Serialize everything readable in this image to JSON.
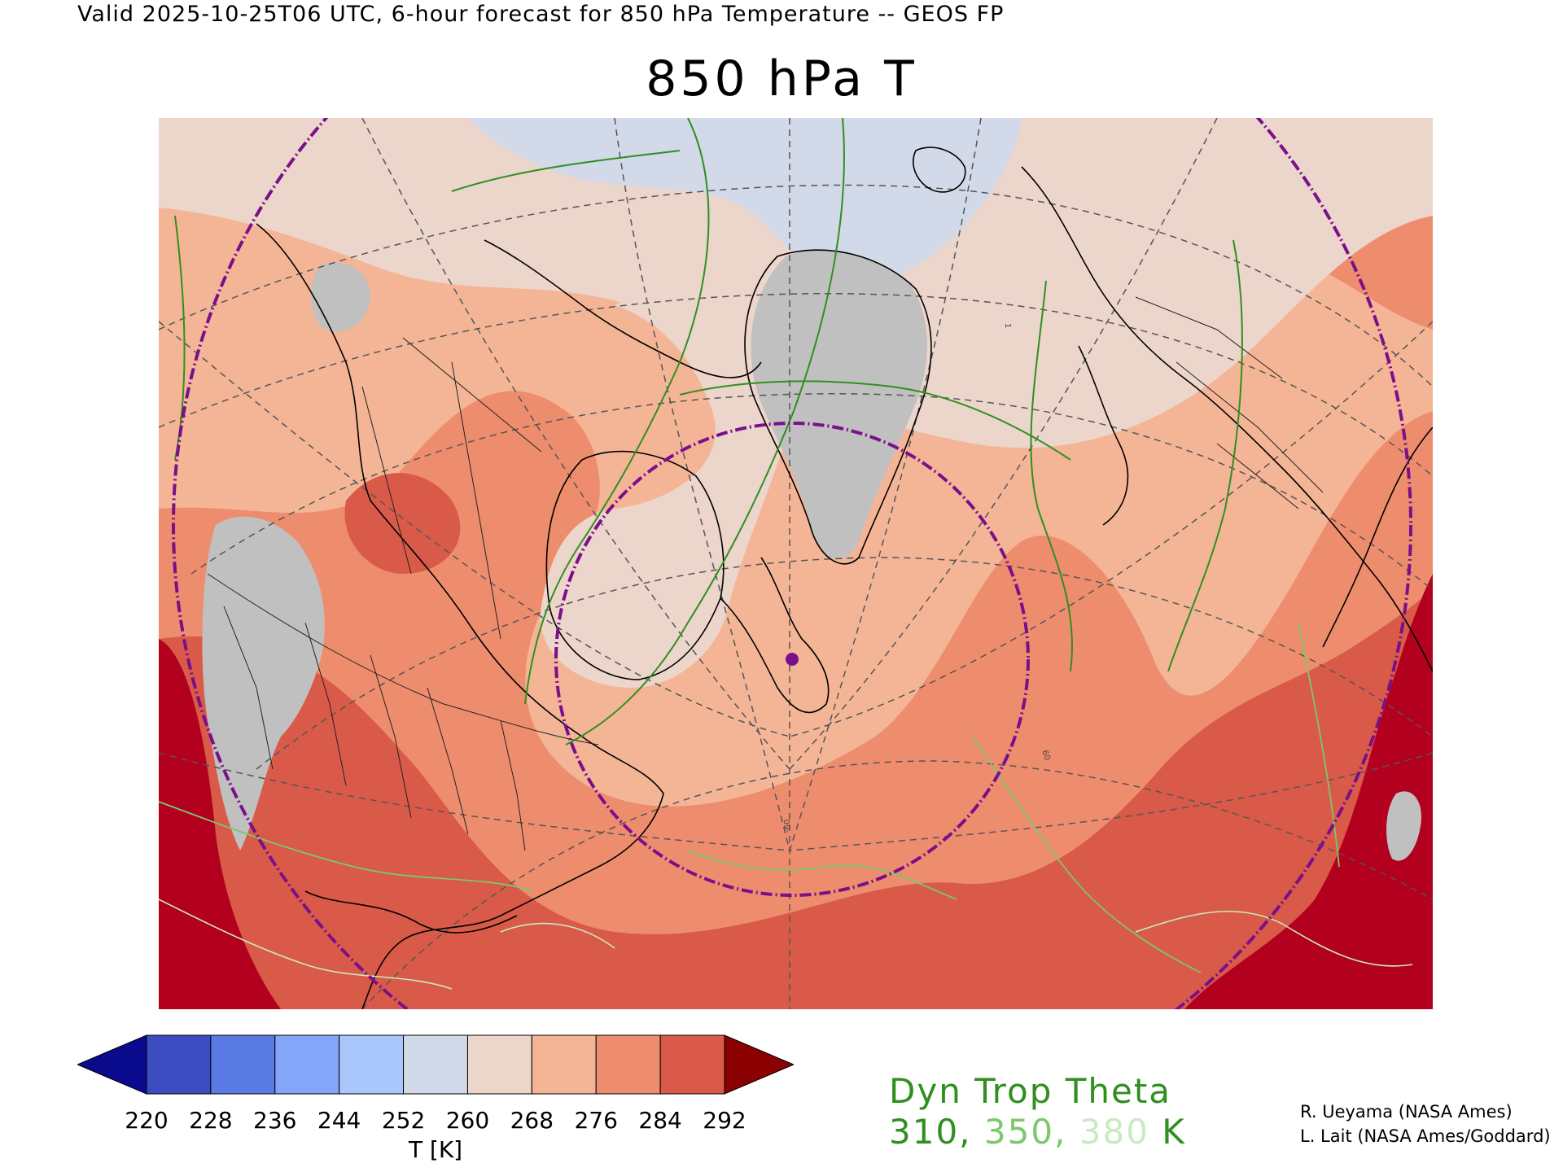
{
  "header": {
    "text": "Valid 2025-10-25T06 UTC, 6-hour forecast for 850 hPa Temperature -- GEOS FP"
  },
  "title": "850 hPa T",
  "map": {
    "map_contour_label_1": "60",
    "map_contour_label_2": "-60",
    "map_contour_label_3": "1",
    "colors": {
      "t252_260": "#d2d9e9",
      "t260_268": "#ecd5cb",
      "t268_276": "#f4b597",
      "t276_284": "#ee8d6d",
      "t284_292": "#d95a48",
      "t_over": "#b3001e",
      "below_range": "#c0c0c0",
      "coast": "#000000",
      "trop310": "#2f8f1f",
      "trop350": "#7cc86a",
      "trop380": "#c8ecc0",
      "range_ring": "#7a0f8a"
    }
  },
  "colorbar": {
    "colors": [
      "#0a0a8c",
      "#3b4cc0",
      "#5b7be4",
      "#84a5f8",
      "#aac7fd",
      "#d2d9e9",
      "#ecd5cb",
      "#f4b597",
      "#ee8d6d",
      "#d95a48",
      "#8b0000"
    ],
    "ticks": [
      "220",
      "228",
      "236",
      "244",
      "252",
      "260",
      "268",
      "276",
      "284",
      "292"
    ],
    "unit_label": "T [K]"
  },
  "legend": {
    "title": "Dyn Trop Theta",
    "level_1": "310",
    "level_2": "350",
    "level_3": "380",
    "unit": "K",
    "sep": ", "
  },
  "credits": {
    "line1": "R. Ueyama (NASA Ames)",
    "line2": "L. Lait (NASA Ames/Goddard)"
  }
}
